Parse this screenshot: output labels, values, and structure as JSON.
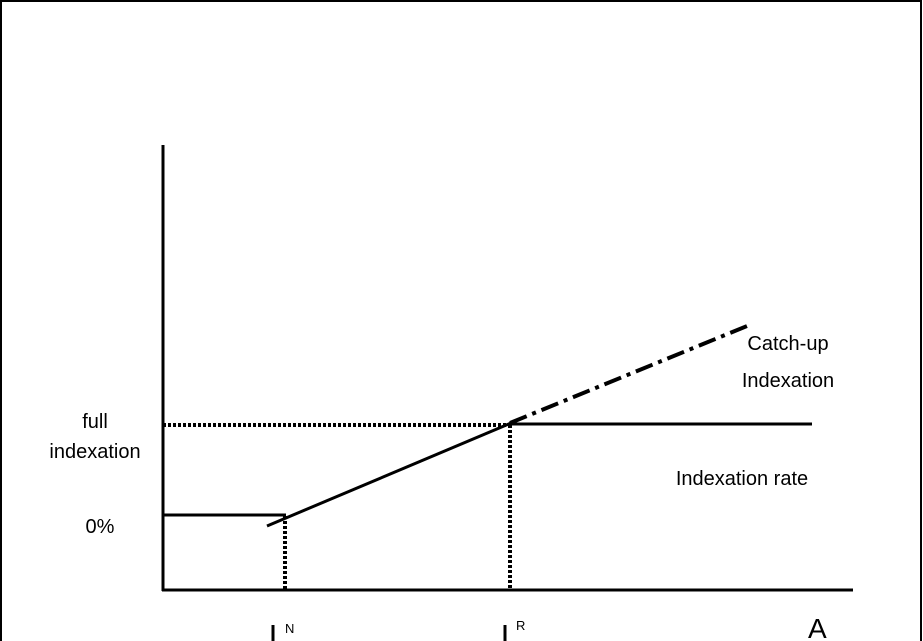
{
  "y_labels": {
    "full_indexation": [
      "full",
      "indexation"
    ],
    "zero": "0%"
  },
  "line_labels": {
    "catch_up": [
      "Catch-up",
      "Indexation"
    ],
    "indexation_rate": "Indexation rate"
  },
  "x_labels": {
    "n": "N",
    "r": "R",
    "a": "A"
  }
}
